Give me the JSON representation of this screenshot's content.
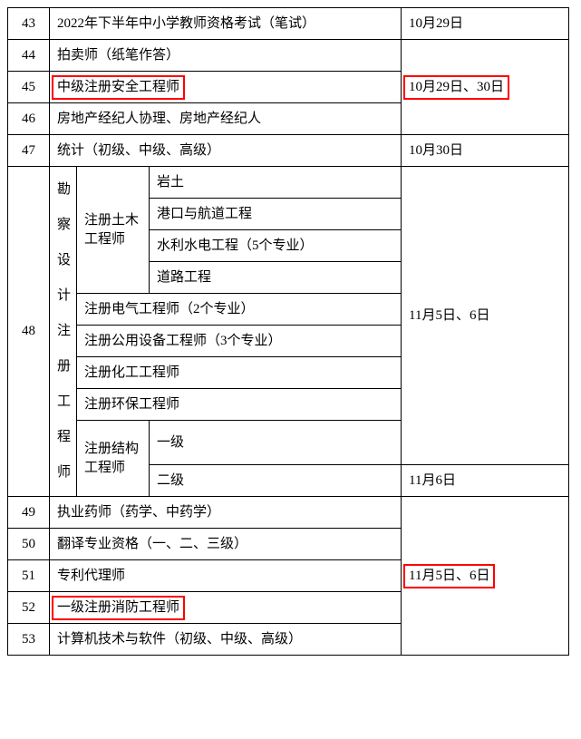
{
  "colors": {
    "border": "#000000",
    "highlight": "#ff0000",
    "bg": "#ffffff",
    "text": "#000000"
  },
  "font": {
    "family": "SimSun",
    "size_pt": 11
  },
  "rows": {
    "r43": {
      "num": "43",
      "name": "2022年下半年中小学教师资格考试（笔试）",
      "date": "10月29日"
    },
    "r44": {
      "num": "44",
      "name": "拍卖师（纸笔作答）"
    },
    "r45": {
      "num": "45",
      "name": "中级注册安全工程师",
      "date": "10月29日、30日"
    },
    "r46": {
      "num": "46",
      "name": "房地产经纪人协理、房地产经纪人"
    },
    "r47": {
      "num": "47",
      "name": "统计（初级、中级、高级）",
      "date": "10月30日"
    },
    "r48": {
      "num": "48",
      "group_label": "勘察设计注册工程师",
      "civil_label": "注册土木工程师",
      "civil_subs": {
        "s1": "岩土",
        "s2": "港口与航道工程",
        "s3": "水利水电工程（5个专业）",
        "s4": "道路工程"
      },
      "elec": "注册电气工程师（2个专业）",
      "equip": "注册公用设备工程师（3个专业）",
      "chem": "注册化工工程师",
      "env": "注册环保工程师",
      "struct_label": "注册结构工程师",
      "struct_subs": {
        "l1": "一级",
        "l2": "二级"
      },
      "date_main": "11月5日、6日",
      "date_l2": "11月6日"
    },
    "r49": {
      "num": "49",
      "name": "执业药师（药学、中药学）"
    },
    "r50": {
      "num": "50",
      "name": "翻译专业资格（一、二、三级）"
    },
    "r51": {
      "num": "51",
      "name": "专利代理师",
      "date": "11月5日、6日"
    },
    "r52": {
      "num": "52",
      "name": "一级注册消防工程师"
    },
    "r53": {
      "num": "53",
      "name": "计算机技术与软件（初级、中级、高级）"
    }
  }
}
